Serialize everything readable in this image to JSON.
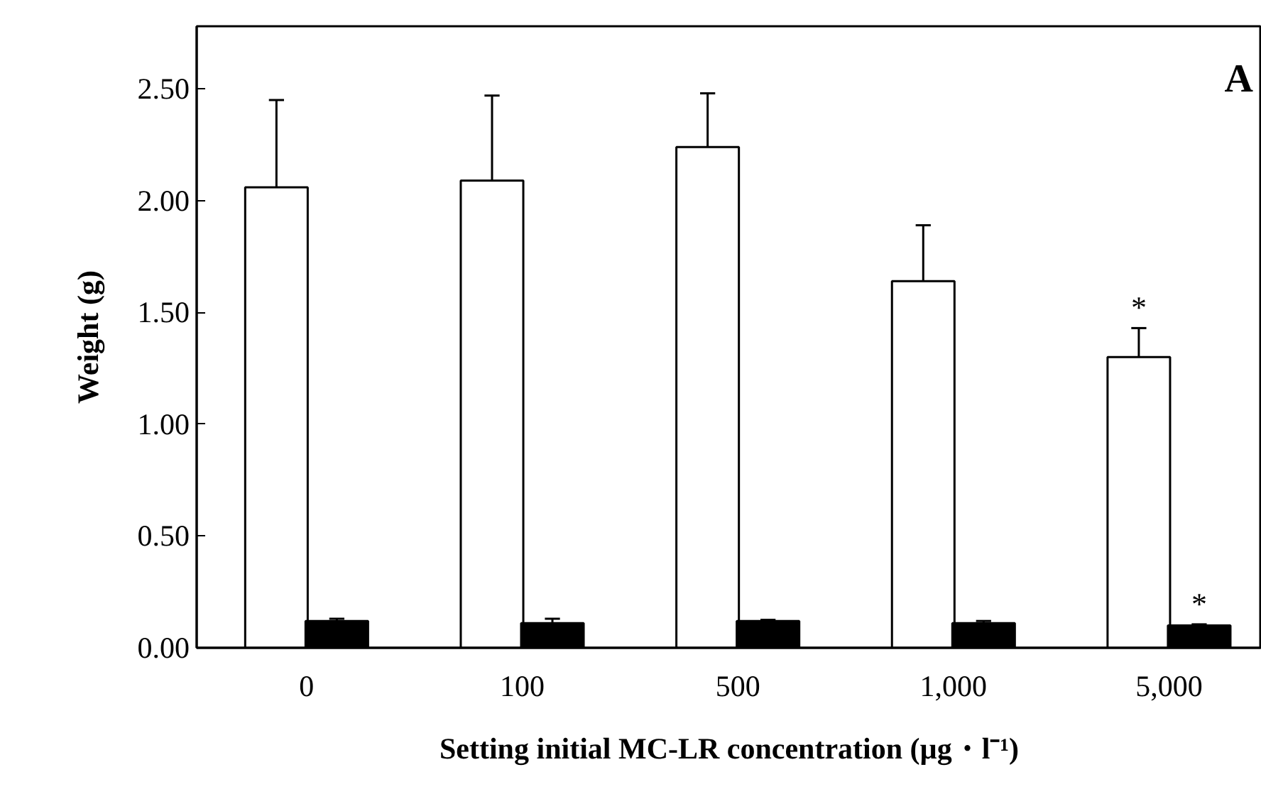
{
  "chart_data": {
    "type": "bar",
    "xlabel": "Setting initial MC-LR concentration (µg・l⁻¹)",
    "ylabel": "Weight (g)",
    "categories": [
      "0",
      "100",
      "500",
      "1,000",
      "5,000"
    ],
    "series": [
      {
        "color": "#ffffff",
        "values": [
          2.06,
          2.09,
          2.24,
          1.64,
          1.3
        ],
        "errors": [
          [
            2.06,
            2.45
          ],
          [
            2.09,
            2.47
          ],
          [
            2.24,
            2.48
          ],
          [
            1.64,
            1.89
          ],
          [
            1.3,
            1.43
          ]
        ]
      },
      {
        "color": "#000000",
        "values": [
          0.12,
          0.11,
          0.12,
          0.11,
          0.1
        ],
        "errors": [
          [
            0.12,
            0.13
          ],
          [
            0.11,
            0.13
          ],
          [
            0.12,
            0.125
          ],
          [
            0.11,
            0.12
          ],
          [
            0.1,
            0.105
          ]
        ]
      }
    ],
    "ylim": [
      0,
      2.78
    ],
    "yticks": [
      {
        "value": 0,
        "label": "0.00"
      },
      {
        "value": 0.5,
        "label": "0.50"
      },
      {
        "value": 1,
        "label": "1.00"
      },
      {
        "value": 1.5,
        "label": "1.50"
      },
      {
        "value": 2,
        "label": "2.00"
      },
      {
        "value": 2.5,
        "label": "2.50"
      }
    ],
    "grid": false,
    "annotations": [
      {
        "text": "*",
        "x": "5,000",
        "y": 1.3
      },
      {
        "text": "*",
        "x": "5,000",
        "y": 0.1
      },
      "A"
    ]
  }
}
